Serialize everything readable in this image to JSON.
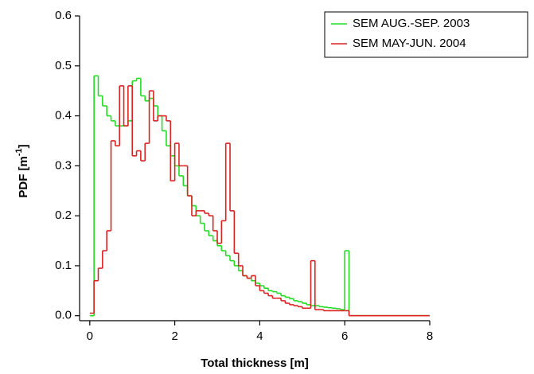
{
  "chart_data": {
    "type": "step",
    "x_label": "Total thickness [m]",
    "y_label_parts": [
      "PDF [m",
      "-1",
      "]"
    ],
    "x": [
      0,
      0.1,
      0.2,
      0.3,
      0.4,
      0.5,
      0.6,
      0.7,
      0.8,
      0.9,
      1.0,
      1.1,
      1.2,
      1.3,
      1.4,
      1.5,
      1.6,
      1.7,
      1.8,
      1.9,
      2.0,
      2.1,
      2.2,
      2.3,
      2.4,
      2.5,
      2.6,
      2.7,
      2.8,
      2.9,
      3.0,
      3.1,
      3.2,
      3.3,
      3.4,
      3.5,
      3.6,
      3.7,
      3.8,
      3.9,
      4.0,
      4.1,
      4.2,
      4.3,
      4.4,
      4.5,
      4.6,
      4.7,
      4.8,
      4.9,
      5.0,
      5.1,
      5.2,
      5.3,
      5.4,
      5.5,
      5.6,
      5.7,
      5.8,
      5.9,
      6.0,
      6.1,
      8
    ],
    "series": [
      {
        "name": "SEM AUG.-SEP. 2003",
        "color": "#22dd22",
        "values": [
          0,
          0.48,
          0.44,
          0.42,
          0.4,
          0.39,
          0.38,
          0.38,
          0.38,
          0.39,
          0.47,
          0.475,
          0.44,
          0.43,
          0.435,
          0.42,
          0.4,
          0.37,
          0.34,
          0.32,
          0.3,
          0.28,
          0.26,
          0.24,
          0.22,
          0.2,
          0.185,
          0.17,
          0.16,
          0.15,
          0.14,
          0.13,
          0.12,
          0.11,
          0.1,
          0.09,
          0.08,
          0.075,
          0.07,
          0.065,
          0.06,
          0.055,
          0.05,
          0.048,
          0.045,
          0.04,
          0.037,
          0.034,
          0.03,
          0.028,
          0.025,
          0.022,
          0.02,
          0.02,
          0.018,
          0.017,
          0.016,
          0.015,
          0.014,
          0.012,
          0.13,
          0,
          0
        ]
      },
      {
        "name": "SEM MAY-JUN. 2004",
        "color": "#dd2222",
        "values": [
          0.005,
          0.07,
          0.095,
          0.13,
          0.17,
          0.35,
          0.34,
          0.46,
          0.38,
          0.46,
          0.32,
          0.33,
          0.31,
          0.345,
          0.45,
          0.39,
          0.4,
          0.4,
          0.39,
          0.27,
          0.345,
          0.3,
          0.3,
          0.24,
          0.2,
          0.21,
          0.21,
          0.205,
          0.2,
          0.17,
          0.145,
          0.19,
          0.345,
          0.21,
          0.125,
          0.1,
          0.08,
          0.075,
          0.08,
          0.06,
          0.05,
          0.045,
          0.04,
          0.035,
          0.035,
          0.03,
          0.025,
          0.022,
          0.02,
          0.018,
          0.015,
          0.015,
          0.11,
          0.012,
          0.012,
          0.01,
          0.01,
          0.01,
          0.01,
          0.01,
          0.01,
          0,
          0
        ]
      }
    ],
    "xlim": [
      -0.24,
      8
    ],
    "ylim": [
      -0.01,
      0.6
    ],
    "xticks": [
      0,
      2,
      4,
      6,
      8
    ],
    "yticks": [
      {
        "value": 0,
        "label": "0.0"
      },
      0.1,
      0.2,
      0.3,
      0.4,
      0.5,
      0.6
    ],
    "legend": "top-right"
  }
}
